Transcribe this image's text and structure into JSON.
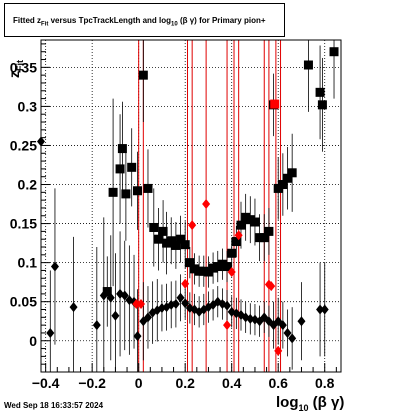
{
  "title": {
    "prefix": "Fitted ",
    "z_main": "z",
    "z_sub": "Fit",
    "middle": " versus TpcTrackLength and log",
    "log_sub": "10",
    "suffix": " (β γ) for Primary pion+"
  },
  "timestamp": "Wed Sep 18 16:33:57 2024",
  "x_title": {
    "main": "log",
    "sub": "10",
    "rest": " (β γ)"
  },
  "y_title": {
    "main": "z",
    "sub": "Fit"
  },
  "chart_data": {
    "type": "scatter",
    "xlim": [
      -0.42,
      0.87
    ],
    "ylim": [
      -0.04,
      0.385
    ],
    "grid": true,
    "x_ticks": [
      -0.4,
      -0.2,
      0,
      0.2,
      0.4,
      0.6,
      0.8
    ],
    "x_tick_labels": [
      "−0.4",
      "−0.2",
      "0",
      "0.2",
      "0.4",
      "0.6",
      "0.8"
    ],
    "y_ticks": [
      0,
      0.05,
      0.1,
      0.15,
      0.2,
      0.25,
      0.3,
      0.35
    ],
    "y_tick_labels": [
      "0",
      "0.05",
      "0.1",
      "0.15",
      "0.2",
      "0.25",
      "0.3",
      "0.35"
    ],
    "red_vertical_lines": [
      0.0,
      0.02,
      0.21,
      0.23,
      0.29,
      0.38,
      0.41,
      0.43,
      0.54,
      0.56,
      0.59,
      0.61
    ],
    "series": [
      {
        "marker": "square",
        "color": "#000000",
        "points": [
          {
            "x": -0.135,
            "y": 0.063,
            "err": 0.045
          },
          {
            "x": -0.11,
            "y": 0.19,
            "err": 0.12
          },
          {
            "x": -0.08,
            "y": 0.22,
            "err": 0.07
          },
          {
            "x": -0.07,
            "y": 0.246,
            "err": 0.06
          },
          {
            "x": -0.055,
            "y": 0.188,
            "err": 0.06
          },
          {
            "x": -0.03,
            "y": 0.222,
            "err": 0.05
          },
          {
            "x": -0.005,
            "y": 0.192,
            "err": 0.05
          },
          {
            "x": 0.02,
            "y": 0.34,
            "err": 0.06
          },
          {
            "x": 0.04,
            "y": 0.195,
            "err": 0.05
          },
          {
            "x": 0.065,
            "y": 0.145,
            "err": 0.05
          },
          {
            "x": 0.085,
            "y": 0.13,
            "err": 0.04
          },
          {
            "x": 0.105,
            "y": 0.14,
            "err": 0.04
          },
          {
            "x": 0.12,
            "y": 0.125,
            "err": 0.04
          },
          {
            "x": 0.14,
            "y": 0.128,
            "err": 0.03
          },
          {
            "x": 0.16,
            "y": 0.122,
            "err": 0.03
          },
          {
            "x": 0.18,
            "y": 0.13,
            "err": 0.03
          },
          {
            "x": 0.2,
            "y": 0.123,
            "err": 0.03
          },
          {
            "x": 0.22,
            "y": 0.1,
            "err": 0.02
          },
          {
            "x": 0.24,
            "y": 0.092,
            "err": 0.02
          },
          {
            "x": 0.26,
            "y": 0.089,
            "err": 0.02
          },
          {
            "x": 0.28,
            "y": 0.089,
            "err": 0.02
          },
          {
            "x": 0.3,
            "y": 0.088,
            "err": 0.02
          },
          {
            "x": 0.32,
            "y": 0.093,
            "err": 0.02
          },
          {
            "x": 0.34,
            "y": 0.095,
            "err": 0.02
          },
          {
            "x": 0.36,
            "y": 0.098,
            "err": 0.02
          },
          {
            "x": 0.38,
            "y": 0.095,
            "err": 0.02
          },
          {
            "x": 0.4,
            "y": 0.112,
            "err": 0.02
          },
          {
            "x": 0.42,
            "y": 0.127,
            "err": 0.02
          },
          {
            "x": 0.44,
            "y": 0.148,
            "err": 0.03
          },
          {
            "x": 0.46,
            "y": 0.158,
            "err": 0.03
          },
          {
            "x": 0.48,
            "y": 0.155,
            "err": 0.03
          },
          {
            "x": 0.5,
            "y": 0.152,
            "err": 0.03
          },
          {
            "x": 0.52,
            "y": 0.132,
            "err": 0.03
          },
          {
            "x": 0.54,
            "y": 0.132,
            "err": 0.03
          },
          {
            "x": 0.56,
            "y": 0.14,
            "err": 0.03
          },
          {
            "x": 0.58,
            "y": 0.302,
            "err": 0.04
          },
          {
            "x": 0.6,
            "y": 0.195,
            "err": 0.04
          },
          {
            "x": 0.62,
            "y": 0.2,
            "err": 0.04
          },
          {
            "x": 0.64,
            "y": 0.208,
            "err": 0.04
          },
          {
            "x": 0.66,
            "y": 0.215,
            "err": 0.05
          },
          {
            "x": 0.73,
            "y": 0.353,
            "err": 0.06
          },
          {
            "x": 0.78,
            "y": 0.318,
            "err": 0.06
          },
          {
            "x": 0.79,
            "y": 0.302,
            "err": 0.06
          },
          {
            "x": 0.84,
            "y": 0.37,
            "err": 0.06
          }
        ]
      },
      {
        "marker": "diamond",
        "color": "#000000",
        "points": [
          {
            "x": -0.42,
            "y": 0.255,
            "err": 0.12
          },
          {
            "x": -0.38,
            "y": 0.01,
            "err": 0.08
          },
          {
            "x": -0.36,
            "y": 0.095,
            "err": 0.1
          },
          {
            "x": -0.28,
            "y": 0.043,
            "err": 0.09
          },
          {
            "x": -0.18,
            "y": 0.02,
            "err": 0.1
          },
          {
            "x": -0.15,
            "y": 0.058,
            "err": 0.1
          },
          {
            "x": -0.12,
            "y": 0.055,
            "err": 0.08
          },
          {
            "x": -0.1,
            "y": 0.032,
            "err": 0.08
          },
          {
            "x": -0.08,
            "y": 0.06,
            "err": 0.08
          },
          {
            "x": -0.06,
            "y": 0.058,
            "err": 0.07
          },
          {
            "x": -0.04,
            "y": 0.052,
            "err": 0.07
          },
          {
            "x": -0.02,
            "y": 0.05,
            "err": 0.06
          },
          {
            "x": -0.005,
            "y": 0.006,
            "err": 0.06
          },
          {
            "x": 0.02,
            "y": 0.025,
            "err": 0.05
          },
          {
            "x": 0.04,
            "y": 0.03,
            "err": 0.04
          },
          {
            "x": 0.06,
            "y": 0.036,
            "err": 0.04
          },
          {
            "x": 0.08,
            "y": 0.039,
            "err": 0.04
          },
          {
            "x": 0.1,
            "y": 0.042,
            "err": 0.03
          },
          {
            "x": 0.12,
            "y": 0.043,
            "err": 0.03
          },
          {
            "x": 0.14,
            "y": 0.046,
            "err": 0.03
          },
          {
            "x": 0.16,
            "y": 0.047,
            "err": 0.03
          },
          {
            "x": 0.18,
            "y": 0.055,
            "err": 0.03
          },
          {
            "x": 0.2,
            "y": 0.048,
            "err": 0.02
          },
          {
            "x": 0.22,
            "y": 0.042,
            "err": 0.02
          },
          {
            "x": 0.24,
            "y": 0.04,
            "err": 0.02
          },
          {
            "x": 0.26,
            "y": 0.037,
            "err": 0.02
          },
          {
            "x": 0.28,
            "y": 0.04,
            "err": 0.02
          },
          {
            "x": 0.3,
            "y": 0.043,
            "err": 0.02
          },
          {
            "x": 0.32,
            "y": 0.046,
            "err": 0.02
          },
          {
            "x": 0.34,
            "y": 0.05,
            "err": 0.02
          },
          {
            "x": 0.36,
            "y": 0.047,
            "err": 0.02
          },
          {
            "x": 0.38,
            "y": 0.045,
            "err": 0.02
          },
          {
            "x": 0.4,
            "y": 0.037,
            "err": 0.02
          },
          {
            "x": 0.42,
            "y": 0.035,
            "err": 0.02
          },
          {
            "x": 0.44,
            "y": 0.033,
            "err": 0.02
          },
          {
            "x": 0.46,
            "y": 0.03,
            "err": 0.02
          },
          {
            "x": 0.48,
            "y": 0.028,
            "err": 0.02
          },
          {
            "x": 0.5,
            "y": 0.027,
            "err": 0.02
          },
          {
            "x": 0.52,
            "y": 0.025,
            "err": 0.02
          },
          {
            "x": 0.54,
            "y": 0.03,
            "err": 0.02
          },
          {
            "x": 0.56,
            "y": 0.025,
            "err": 0.02
          },
          {
            "x": 0.58,
            "y": 0.02,
            "err": 0.03
          },
          {
            "x": 0.6,
            "y": 0.025,
            "err": 0.03
          },
          {
            "x": 0.62,
            "y": 0.02,
            "err": 0.03
          },
          {
            "x": 0.64,
            "y": 0.01,
            "err": 0.03
          },
          {
            "x": 0.66,
            "y": 0.003,
            "err": 0.04
          },
          {
            "x": 0.7,
            "y": 0.025,
            "err": 0.05
          },
          {
            "x": 0.78,
            "y": 0.04,
            "err": 0.06
          },
          {
            "x": 0.8,
            "y": 0.04,
            "err": 0.06
          }
        ]
      },
      {
        "marker": "square",
        "color": "#ff0000",
        "points": [
          {
            "x": 0.585,
            "y": 0.303,
            "err": 0.0
          }
        ]
      },
      {
        "marker": "diamond",
        "color": "#ff0000",
        "points": [
          {
            "x": -0.01,
            "y": 0.047,
            "err": 0.0
          },
          {
            "x": 0.01,
            "y": 0.047,
            "err": 0.0
          },
          {
            "x": 0.2,
            "y": 0.073,
            "err": 0.0
          },
          {
            "x": 0.23,
            "y": 0.148,
            "err": 0.0
          },
          {
            "x": 0.29,
            "y": 0.175,
            "err": 0.0
          },
          {
            "x": 0.38,
            "y": 0.02,
            "err": 0.0
          },
          {
            "x": 0.4,
            "y": 0.088,
            "err": 0.0
          },
          {
            "x": 0.43,
            "y": 0.135,
            "err": 0.0
          },
          {
            "x": 0.56,
            "y": 0.072,
            "err": 0.0
          },
          {
            "x": 0.57,
            "y": 0.07,
            "err": 0.0
          },
          {
            "x": 0.6,
            "y": -0.013,
            "err": 0.0
          }
        ]
      }
    ]
  }
}
